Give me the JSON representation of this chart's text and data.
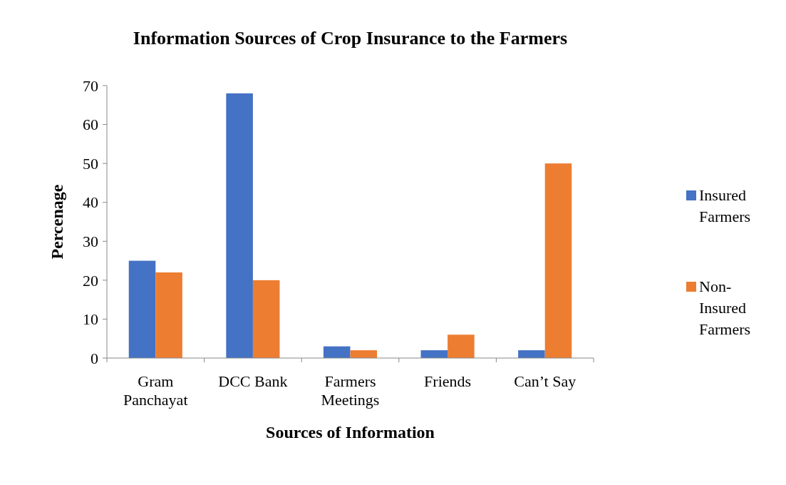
{
  "chart_data": {
    "type": "bar",
    "title": "Information Sources of Crop Insurance to the Farmers",
    "xlabel": "Sources of Information",
    "ylabel": "Percenage",
    "categories": [
      "Gram Panchayat",
      "DCC Bank",
      "Farmers Meetings",
      "Friends",
      "Can’t Say"
    ],
    "series": [
      {
        "name": "Insured Farmers",
        "color": "#4472c4",
        "values": [
          25,
          68,
          3,
          2,
          2
        ]
      },
      {
        "name": "Non-Insured Farmers",
        "color": "#ed7d31",
        "values": [
          22,
          20,
          2,
          6,
          50
        ]
      }
    ],
    "ylim": [
      0,
      70
    ],
    "yticks": [
      0,
      10,
      20,
      30,
      40,
      50,
      60,
      70
    ],
    "grid": false,
    "legend": "right"
  }
}
